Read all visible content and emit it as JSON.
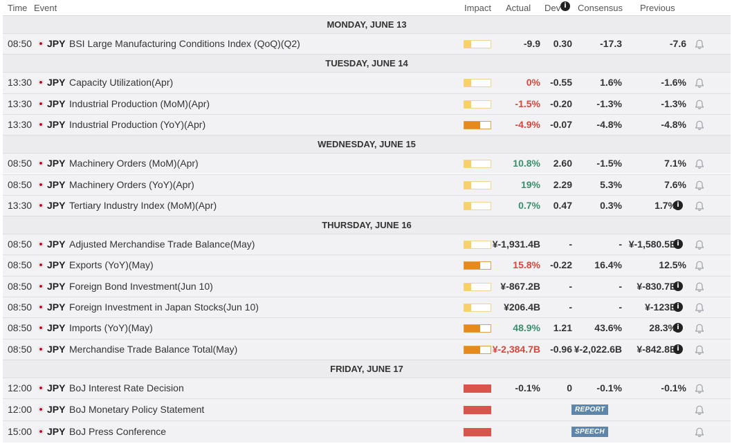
{
  "header": {
    "time": "Time",
    "event": "Event",
    "impact": "Impact",
    "actual": "Actual",
    "dev": "Dev",
    "consensus": "Consensus",
    "previous": "Previous",
    "info_icon": "info-icon"
  },
  "colors": {
    "negative": "#d6463a",
    "positive": "#3a8f6a",
    "neutral": "#333333",
    "impact_low": "#f7cf6b",
    "impact_medium": "#e78a1e",
    "impact_high": "#d9544a",
    "tag_bg": "#5d86aa"
  },
  "days": [
    {
      "label": "MONDAY, JUNE 13"
    },
    {
      "label": "TUESDAY, JUNE 14"
    },
    {
      "label": "WEDNESDAY, JUNE 15"
    },
    {
      "label": "THURSDAY, JUNE 16"
    },
    {
      "label": "FRIDAY, JUNE 17"
    }
  ],
  "events": [
    {
      "day": 0,
      "time": "08:50",
      "currency": "JPY",
      "event": "BSI Large Manufacturing Conditions Index (QoQ)(Q2)",
      "impact": "low",
      "actual": "-9.9",
      "actual_tone": "neutral",
      "dev": "0.30",
      "consensus": "-17.3",
      "previous": "-7.6",
      "prev_info": false
    },
    {
      "day": 1,
      "time": "13:30",
      "currency": "JPY",
      "event": "Capacity Utilization(Apr)",
      "impact": "low",
      "actual": "0%",
      "actual_tone": "negative",
      "dev": "-0.55",
      "consensus": "1.6%",
      "previous": "-1.6%",
      "prev_info": false
    },
    {
      "day": 1,
      "time": "13:30",
      "currency": "JPY",
      "event": "Industrial Production (MoM)(Apr)",
      "impact": "low",
      "actual": "-1.5%",
      "actual_tone": "negative",
      "dev": "-0.20",
      "consensus": "-1.3%",
      "previous": "-1.3%",
      "prev_info": false
    },
    {
      "day": 1,
      "time": "13:30",
      "currency": "JPY",
      "event": "Industrial Production (YoY)(Apr)",
      "impact": "medium",
      "actual": "-4.9%",
      "actual_tone": "negative",
      "dev": "-0.07",
      "consensus": "-4.8%",
      "previous": "-4.8%",
      "prev_info": false
    },
    {
      "day": 2,
      "time": "08:50",
      "currency": "JPY",
      "event": "Machinery Orders (MoM)(Apr)",
      "impact": "low",
      "actual": "10.8%",
      "actual_tone": "positive",
      "dev": "2.60",
      "consensus": "-1.5%",
      "previous": "7.1%",
      "prev_info": false
    },
    {
      "day": 2,
      "time": "08:50",
      "currency": "JPY",
      "event": "Machinery Orders (YoY)(Apr)",
      "impact": "low",
      "actual": "19%",
      "actual_tone": "positive",
      "dev": "2.29",
      "consensus": "5.3%",
      "previous": "7.6%",
      "prev_info": false
    },
    {
      "day": 2,
      "time": "13:30",
      "currency": "JPY",
      "event": "Tertiary Industry Index (MoM)(Apr)",
      "impact": "low",
      "actual": "0.7%",
      "actual_tone": "positive",
      "dev": "0.47",
      "consensus": "0.3%",
      "previous": "1.7%",
      "prev_info": true
    },
    {
      "day": 3,
      "time": "08:50",
      "currency": "JPY",
      "event": "Adjusted Merchandise Trade Balance(May)",
      "impact": "low",
      "actual": "¥-1,931.4B",
      "actual_tone": "neutral",
      "dev": "-",
      "consensus": "-",
      "previous": "¥-1,580.5B",
      "prev_info": true
    },
    {
      "day": 3,
      "time": "08:50",
      "currency": "JPY",
      "event": "Exports (YoY)(May)",
      "impact": "medium",
      "actual": "15.8%",
      "actual_tone": "negative",
      "dev": "-0.22",
      "consensus": "16.4%",
      "previous": "12.5%",
      "prev_info": false
    },
    {
      "day": 3,
      "time": "08:50",
      "currency": "JPY",
      "event": "Foreign Bond Investment(Jun 10)",
      "impact": "low",
      "actual": "¥-867.2B",
      "actual_tone": "neutral",
      "dev": "-",
      "consensus": "-",
      "previous": "¥-830.7B",
      "prev_info": true
    },
    {
      "day": 3,
      "time": "08:50",
      "currency": "JPY",
      "event": "Foreign Investment in Japan Stocks(Jun 10)",
      "impact": "low",
      "actual": "¥206.4B",
      "actual_tone": "neutral",
      "dev": "-",
      "consensus": "-",
      "previous": "¥-123B",
      "prev_info": true
    },
    {
      "day": 3,
      "time": "08:50",
      "currency": "JPY",
      "event": "Imports (YoY)(May)",
      "impact": "medium",
      "actual": "48.9%",
      "actual_tone": "positive",
      "dev": "1.21",
      "consensus": "43.6%",
      "previous": "28.3%",
      "prev_info": true
    },
    {
      "day": 3,
      "time": "08:50",
      "currency": "JPY",
      "event": "Merchandise Trade Balance Total(May)",
      "impact": "medium",
      "actual": "¥-2,384.7B",
      "actual_tone": "negative",
      "dev": "-0.96",
      "consensus": "¥-2,022.6B",
      "previous": "¥-842.8B",
      "prev_info": true
    },
    {
      "day": 4,
      "time": "12:00",
      "currency": "JPY",
      "event": "BoJ Interest Rate Decision",
      "impact": "high",
      "actual": "-0.1%",
      "actual_tone": "neutral",
      "dev": "0",
      "consensus": "-0.1%",
      "previous": "-0.1%",
      "prev_info": false
    },
    {
      "day": 4,
      "time": "12:00",
      "currency": "JPY",
      "event": "BoJ Monetary Policy Statement",
      "impact": "high",
      "tag": "REPORT"
    },
    {
      "day": 4,
      "time": "15:00",
      "currency": "JPY",
      "event": "BoJ Press Conference",
      "impact": "high",
      "tag": "SPEECH"
    }
  ]
}
